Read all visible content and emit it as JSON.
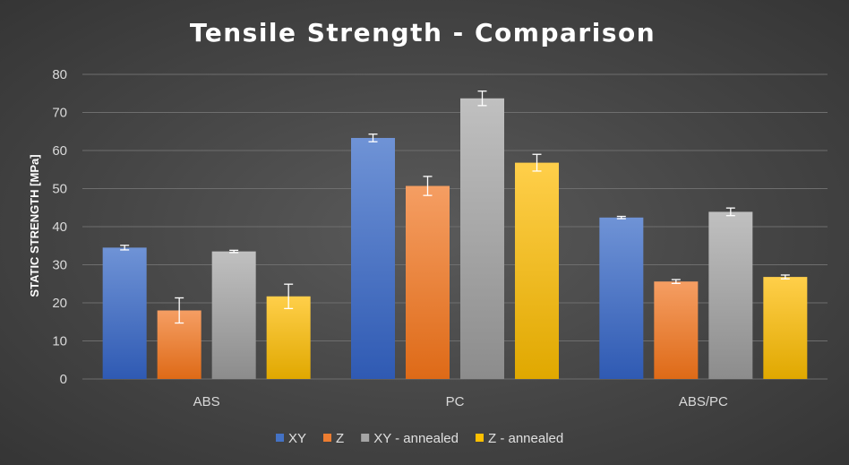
{
  "chart_data": {
    "type": "bar",
    "title": "Tensile Strength - Comparison",
    "xlabel": "",
    "ylabel": "STATIC STRENGTH [MPa]",
    "ylim": [
      0,
      80
    ],
    "yticks": [
      0,
      10,
      20,
      30,
      40,
      50,
      60,
      70,
      80
    ],
    "grid": true,
    "legend_position": "bottom",
    "categories": [
      "ABS",
      "PC",
      "ABS/PC"
    ],
    "series": [
      {
        "name": "XY",
        "color": "#4472c4",
        "values": [
          34.5,
          63.3,
          42.4
        ],
        "errors": [
          0.6,
          1.0,
          0.3
        ]
      },
      {
        "name": "Z",
        "color": "#ed7d31",
        "values": [
          18.0,
          50.7,
          25.6
        ],
        "errors": [
          3.3,
          2.5,
          0.5
        ]
      },
      {
        "name": "XY - annealed",
        "color": "#a5a5a5",
        "values": [
          33.5,
          73.7,
          43.9
        ],
        "errors": [
          0.3,
          1.9,
          1.0
        ]
      },
      {
        "name": "Z - annealed",
        "color": "#ffc000",
        "values": [
          21.7,
          56.8,
          26.8
        ],
        "errors": [
          3.2,
          2.2,
          0.5
        ]
      }
    ]
  }
}
